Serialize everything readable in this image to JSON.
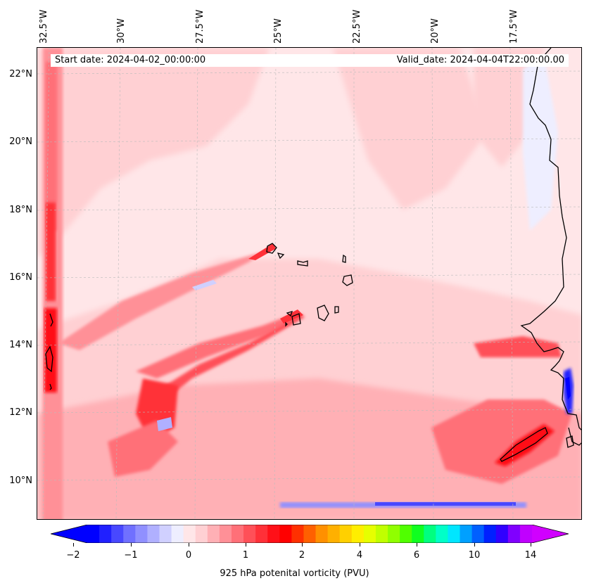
{
  "map": {
    "lon_ticks": [
      "32.5°W",
      "30°W",
      "27.5°W",
      "25°W",
      "22.5°W",
      "20°W",
      "17.5°W"
    ],
    "lat_ticks": [
      "22°N",
      "20°N",
      "18°N",
      "16°N",
      "14°N",
      "12°N",
      "10°N"
    ]
  },
  "info": {
    "start_date": "Start date: 2024-04-02_00:00:00",
    "valid_date": "Valid_date: 2024-04-04T22:00:00.00"
  },
  "colorbar": {
    "label": "925 hPa potenital vorticity (PVU)",
    "ticks": [
      "−2",
      "−1",
      "0",
      "1",
      "2",
      "4",
      "6",
      "10",
      "14"
    ],
    "colors": [
      "#0000ff",
      "#2020ff",
      "#4848ff",
      "#7070ff",
      "#9090ff",
      "#b0b0ff",
      "#d0d0ff",
      "#eeeeff",
      "#ffe6e8",
      "#ffd0d3",
      "#ffb0b5",
      "#ff9097",
      "#ff7078",
      "#ff5058",
      "#ff3038",
      "#ff1018",
      "#ff0000",
      "#ff3000",
      "#ff6000",
      "#ff9000",
      "#ffb000",
      "#ffd000",
      "#ffee00",
      "#e6ff00",
      "#c0ff00",
      "#90ff00",
      "#50ff00",
      "#10ff20",
      "#00ff80",
      "#00ffc8",
      "#00e6ff",
      "#00a0ff",
      "#0060ff",
      "#0020ff",
      "#3000ff",
      "#8000ff",
      "#c000ff"
    ],
    "underflow_color": "#0000ff",
    "overflow_color": "#d000ff"
  }
}
